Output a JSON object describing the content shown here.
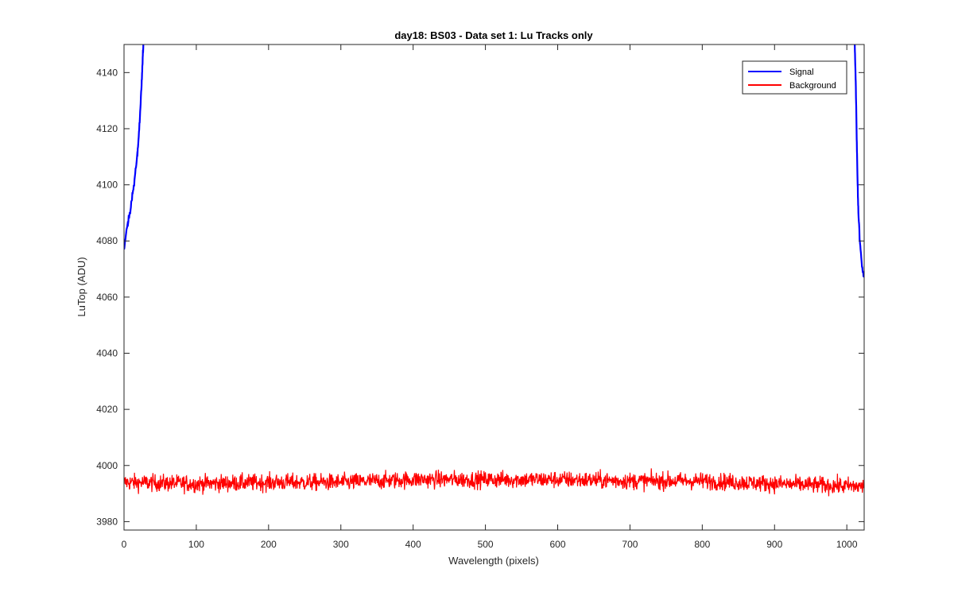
{
  "chart_data": {
    "type": "line",
    "title": "day18: BS03 - Data set 1: Lu Tracks only",
    "xlabel": "Wavelength (pixels)",
    "ylabel": "LuTop (ADU)",
    "xlim": [
      0,
      1024
    ],
    "ylim": [
      3977,
      4150
    ],
    "xticks": [
      0,
      100,
      200,
      300,
      400,
      500,
      600,
      700,
      800,
      900,
      1000
    ],
    "yticks": [
      3980,
      4000,
      4020,
      4040,
      4060,
      4080,
      4100,
      4120,
      4140
    ],
    "grid": false,
    "legend_position": "top-right",
    "series": [
      {
        "name": "Signal",
        "color": "#0000ff",
        "segments": [
          {
            "x": [
              0,
              3,
              6,
              9,
              12,
              15,
              18,
              20,
              22,
              24,
              25,
              26,
              27,
              28,
              29
            ],
            "y": [
              4077,
              4083,
              4087,
              4091,
              4097,
              4103,
              4110,
              4116,
              4124,
              4134,
              4140,
              4146,
              4152,
              4160,
              4170
            ]
          },
          {
            "x": [
              1010,
              1011,
              1012,
              1013,
              1014,
              1015,
              1016,
              1018,
              1020,
              1022,
              1024
            ],
            "y": [
              4165,
              4150,
              4140,
              4128,
              4112,
              4100,
              4090,
              4080,
              4074,
              4069,
              4067
            ]
          }
        ]
      },
      {
        "name": "Background",
        "color": "#ff0000",
        "x_start": 0,
        "x_end": 1024,
        "baseline": [
          [
            0,
            3994
          ],
          [
            100,
            3993.5
          ],
          [
            200,
            3994
          ],
          [
            300,
            3994
          ],
          [
            400,
            3995
          ],
          [
            500,
            3995
          ],
          [
            600,
            3995
          ],
          [
            700,
            3994.5
          ],
          [
            800,
            3994.5
          ],
          [
            900,
            3993.5
          ],
          [
            1024,
            3992.5
          ]
        ],
        "noise_amplitude": 2.2,
        "y_min": 3987,
        "y_max": 4000
      }
    ]
  }
}
